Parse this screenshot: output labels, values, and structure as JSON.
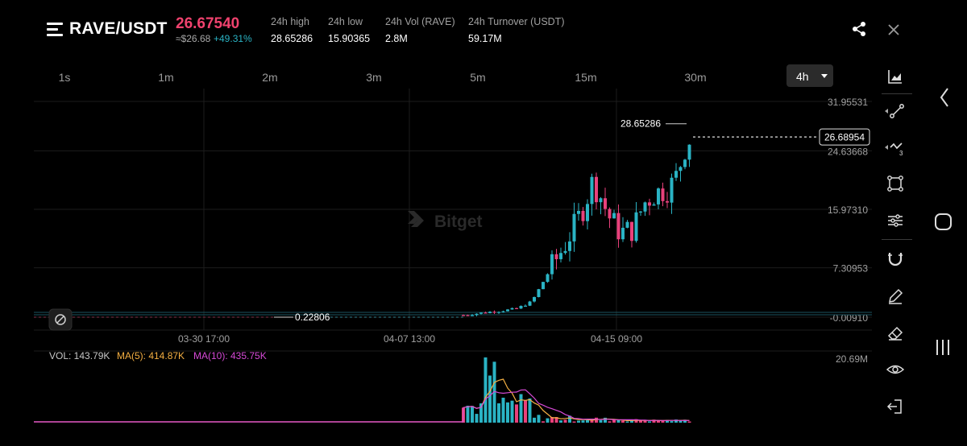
{
  "header": {
    "pair": "RAVE/USDT",
    "last_price": "26.67540",
    "approx": "≈$26.68",
    "change": "+49.31%",
    "stats": [
      {
        "label": "24h high",
        "value": "28.65286"
      },
      {
        "label": "24h low",
        "value": "15.90365"
      },
      {
        "label": "24h Vol (RAVE)",
        "value": "2.8M"
      },
      {
        "label": "24h Turnover (USDT)",
        "value": "59.17M"
      }
    ]
  },
  "intervals": [
    "1s",
    "1m",
    "2m",
    "3m",
    "5m",
    "15m",
    "30m"
  ],
  "selected_interval": "4h",
  "chart_data": {
    "type": "candlestick",
    "watermark": "Bitget",
    "y_ticks": [
      "31.95531",
      "24.63668",
      "15.97310",
      "7.30953",
      "-0.00910"
    ],
    "y_tick_values": [
      31.95531,
      24.63668,
      15.9731,
      7.30953,
      -0.0091
    ],
    "x_ticks": [
      "03-30 17:00",
      "04-07 13:00",
      "04-15 09:00"
    ],
    "current_price_label": "26.68954",
    "current_price": 26.68954,
    "high_marker": "28.65286",
    "high_value": 28.65286,
    "low_marker": "0.22806",
    "low_value": 0.22806,
    "volume": {
      "vol_label": "VOL: 143.79K",
      "ma5_label": "MA(5): 414.87K",
      "ma10_label": "MA(10): 435.75K",
      "max_label": "20.69M",
      "max_value": 20.69
    },
    "colors": {
      "up": "#2ab3c4",
      "down": "#e8417b",
      "ma5": "#f5b043",
      "ma10": "#d64ad6",
      "grid": "#1c1c1c"
    }
  },
  "tools": [
    "chart-type-icon",
    "line-tool-icon",
    "trend-tool-icon",
    "rectangle-tool-icon",
    "settings-sliders-icon",
    "magnet-icon",
    "pencil-icon",
    "eraser-icon",
    "eye-icon",
    "exit-icon"
  ]
}
